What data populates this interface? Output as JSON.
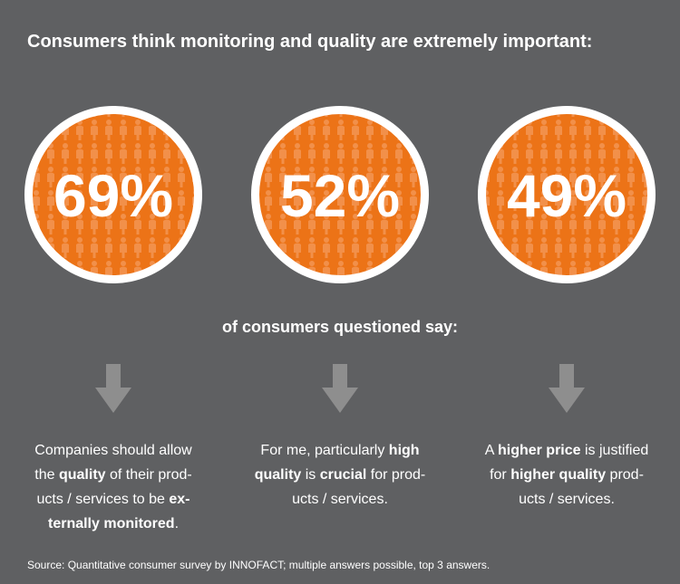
{
  "title": "Consumers think monitoring and quality are extremely important:",
  "subtitle": "of consumers questioned say:",
  "source": "Source: Quantitative consumer survey by INNOFACT; multiple answers possible, top 3 answers.",
  "items": [
    {
      "stat": "69%",
      "lines": [
        [
          {
            "text": "Companies should allow"
          }
        ],
        [
          {
            "text": "the "
          },
          {
            "text": "quality",
            "bold": true
          },
          {
            "text": " of their prod-"
          }
        ],
        [
          {
            "text": "ucts / services to be "
          },
          {
            "text": "ex-",
            "bold": true
          }
        ],
        [
          {
            "text": "ternally monitored",
            "bold": true
          },
          {
            "text": "."
          }
        ]
      ]
    },
    {
      "stat": "52%",
      "lines": [
        [
          {
            "text": "For me, particularly "
          },
          {
            "text": "high",
            "bold": true
          }
        ],
        [
          {
            "text": "quality",
            "bold": true
          },
          {
            "text": " is "
          },
          {
            "text": "crucial",
            "bold": true
          },
          {
            "text": " for prod-"
          }
        ],
        [
          {
            "text": "ucts / services."
          }
        ]
      ]
    },
    {
      "stat": "49%",
      "lines": [
        [
          {
            "text": "A "
          },
          {
            "text": "higher price",
            "bold": true
          },
          {
            "text": " is justified"
          }
        ],
        [
          {
            "text": "for "
          },
          {
            "text": "higher quality",
            "bold": true
          },
          {
            "text": " prod-"
          }
        ],
        [
          {
            "text": "ucts / services."
          }
        ]
      ]
    }
  ]
}
